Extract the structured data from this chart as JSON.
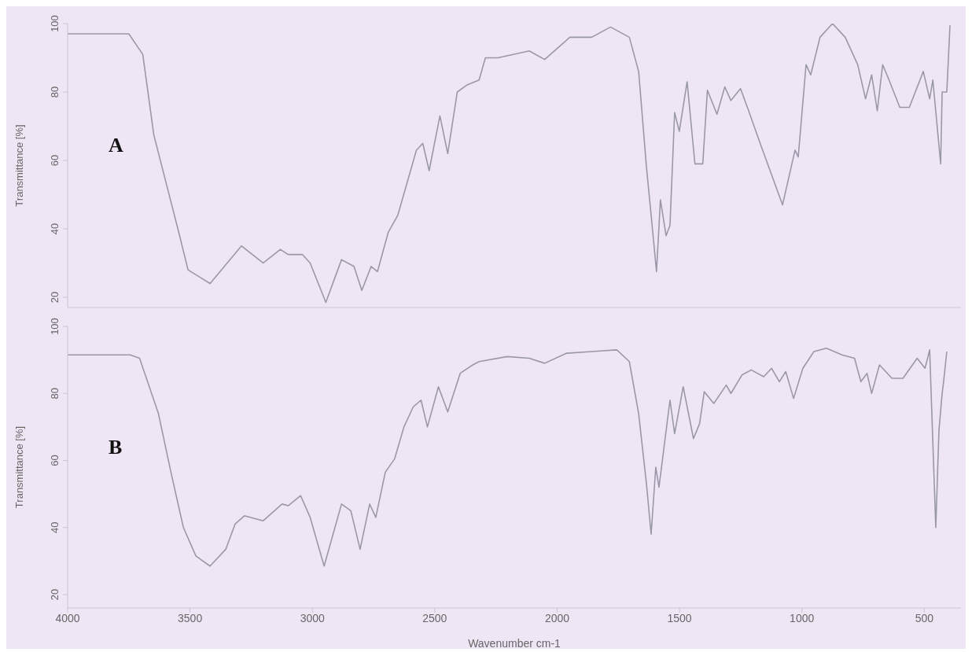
{
  "chart_data": [
    {
      "type": "line",
      "ylabel": "Transmittance [%]",
      "annotations": [
        "A"
      ],
      "tick_labels": "y",
      "xlim": [
        4000,
        350
      ],
      "ylim": [
        17,
        100
      ],
      "yticks": [
        20,
        40,
        60,
        80,
        100
      ],
      "grid": false,
      "series": [
        {
          "color": "#9a98a8",
          "x": [
            4000,
            3750,
            3693,
            3648,
            3546,
            3508,
            3418,
            3290,
            3201,
            3131,
            3099,
            3041,
            3009,
            2945,
            2881,
            2830,
            2798,
            2760,
            2734,
            2690,
            2651,
            2575,
            2549,
            2523,
            2479,
            2447,
            2408,
            2370,
            2319,
            2293,
            2242,
            2114,
            2051,
            1948,
            1859,
            1782,
            1705,
            1667,
            1635,
            1616,
            1594,
            1578,
            1555,
            1539,
            1520,
            1501,
            1469,
            1437,
            1405,
            1386,
            1347,
            1315,
            1290,
            1251,
            1220,
            1168,
            1079,
            1028,
            1015,
            983,
            964,
            926,
            875,
            823,
            772,
            740,
            715,
            692,
            670,
            644,
            600,
            561,
            504,
            478,
            465,
            433,
            427,
            408,
            395
          ],
          "values": [
            97,
            97,
            91,
            67.5,
            39,
            28,
            24,
            35,
            30,
            34,
            32.5,
            32.5,
            30,
            18.5,
            31,
            29,
            22,
            29,
            27.5,
            39,
            44,
            63,
            65,
            57,
            73,
            62,
            80,
            82,
            83.5,
            90,
            90,
            92,
            89.5,
            96,
            96,
            99,
            96,
            86,
            58,
            44,
            27.5,
            48.5,
            38,
            41,
            74,
            68.5,
            83,
            59,
            59,
            80.5,
            73.5,
            81.5,
            77.5,
            81,
            75,
            64.5,
            47,
            63,
            61,
            88,
            85,
            96,
            100,
            96,
            88,
            78,
            85,
            74.5,
            88,
            83.5,
            75.5,
            75.5,
            86,
            78,
            83.5,
            59,
            80,
            80,
            99.5
          ]
        }
      ]
    },
    {
      "type": "line",
      "ylabel": "Transmittance [%]",
      "xlabel": "Wavenumber cm-1",
      "annotations": [
        "B"
      ],
      "xlim": [
        4000,
        350
      ],
      "xticks": [
        4000,
        3500,
        3000,
        2500,
        2000,
        1500,
        1000,
        500
      ],
      "ylim": [
        16,
        100
      ],
      "yticks": [
        20,
        40,
        60,
        80,
        100
      ],
      "grid": false,
      "series": [
        {
          "color": "#9a98a8",
          "x": [
            4000,
            3744,
            3706,
            3629,
            3578,
            3527,
            3476,
            3418,
            3354,
            3316,
            3278,
            3201,
            3124,
            3099,
            3048,
            3009,
            2952,
            2881,
            2843,
            2805,
            2766,
            2741,
            2702,
            2664,
            2626,
            2588,
            2556,
            2530,
            2485,
            2447,
            2396,
            2345,
            2319,
            2204,
            2114,
            2051,
            1961,
            1859,
            1756,
            1705,
            1667,
            1635,
            1616,
            1597,
            1584,
            1539,
            1520,
            1485,
            1443,
            1418,
            1399,
            1360,
            1309,
            1290,
            1245,
            1207,
            1156,
            1124,
            1092,
            1066,
            1034,
            996,
            951,
            900,
            836,
            785,
            759,
            734,
            715,
            683,
            632,
            587,
            529,
            497,
            478,
            453,
            440,
            427,
            421,
            408
          ],
          "values": [
            91.5,
            91.5,
            90.5,
            74,
            56.5,
            40,
            31.5,
            28.5,
            33.5,
            41,
            43.5,
            42,
            47,
            46.5,
            49.5,
            43,
            28.5,
            47,
            45,
            33.5,
            47,
            43,
            56.5,
            60.5,
            70,
            76,
            78,
            70,
            82,
            74.5,
            86,
            88.5,
            89.5,
            91,
            90.5,
            89,
            92,
            92.5,
            93,
            89.5,
            74,
            53,
            38,
            58,
            52,
            78,
            68,
            82,
            66.5,
            71,
            80.5,
            77,
            82.5,
            80,
            85.5,
            87,
            85,
            87.5,
            83.5,
            86.5,
            78.5,
            87.5,
            92.5,
            93.5,
            91.5,
            90.5,
            83.5,
            86,
            80,
            88.5,
            84.5,
            84.5,
            90.5,
            87.5,
            93,
            40,
            69,
            80,
            83.5,
            92.5
          ]
        }
      ]
    }
  ]
}
